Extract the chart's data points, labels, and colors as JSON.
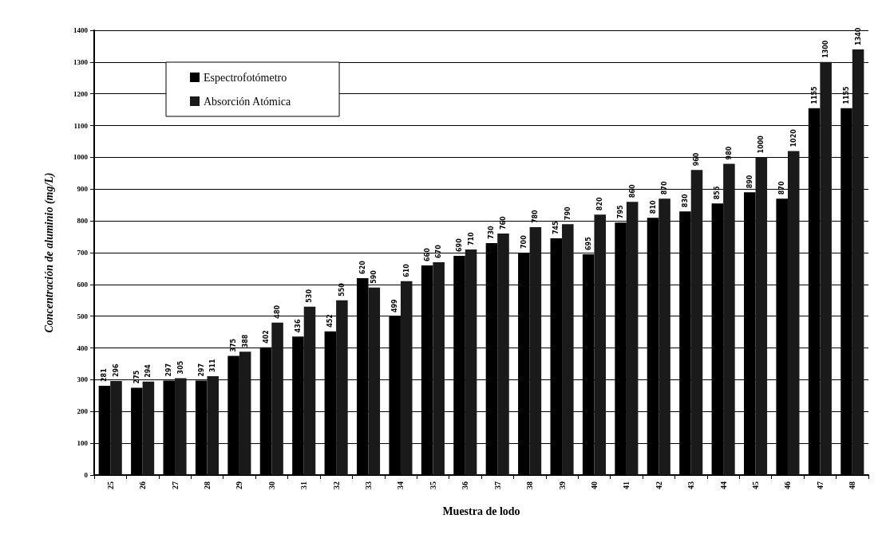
{
  "chart_data": {
    "type": "bar",
    "xlabel": "Muestra de lodo",
    "ylabel": "Concentración de aluminio (mg/L)",
    "categories": [
      "25",
      "26",
      "27",
      "28",
      "29",
      "30",
      "31",
      "32",
      "33",
      "34",
      "35",
      "36",
      "37",
      "38",
      "39",
      "40",
      "41",
      "42",
      "43",
      "44",
      "45",
      "46",
      "47",
      "48"
    ],
    "series": [
      {
        "name": "Espectrofotómetro",
        "color": "#000000",
        "values": [
          281,
          275,
          297,
          297,
          375,
          402,
          436,
          452,
          620,
          499,
          660,
          690,
          730,
          700,
          745,
          695,
          795,
          810,
          830,
          855,
          890,
          870,
          1155,
          1155
        ]
      },
      {
        "name": "Absorción Atómica",
        "color": "#1a1a1a",
        "values": [
          296,
          294,
          305,
          311,
          388,
          480,
          530,
          550,
          590,
          610,
          670,
          710,
          760,
          780,
          790,
          820,
          860,
          870,
          960,
          980,
          1000,
          1020,
          1300,
          1340
        ]
      }
    ],
    "ylim": [
      0,
      1400
    ],
    "yticks": [
      0,
      100,
      200,
      300,
      400,
      500,
      600,
      700,
      800,
      900,
      1000,
      1100,
      1200,
      1300,
      1400
    ],
    "grid": "y",
    "legend": "top left",
    "data_labels": true
  }
}
